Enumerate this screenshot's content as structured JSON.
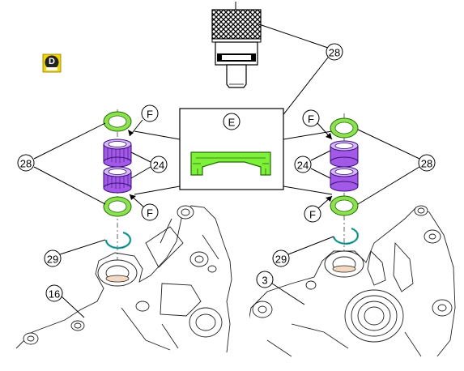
{
  "diagram": {
    "colors": {
      "snap_ring": "#8de050",
      "needle_bearing": "#a259e8",
      "circlip": "#35b6b0",
      "detail_part": "#7ff03a",
      "badge_bg": "#f1d400",
      "line": "#000000"
    },
    "badge": {
      "letter": "D",
      "icon": "service-tool-badge-icon"
    },
    "detail_label": "E",
    "callouts": {
      "tool": "28",
      "left_ring": "28",
      "left_bearing": "24",
      "left_f_top": "F",
      "left_f_bottom": "F",
      "left_circlip": "29",
      "left_housing": "16",
      "right_ring": "28",
      "right_bearing": "24",
      "right_f_top": "F",
      "right_f_bottom": "F",
      "right_circlip": "29",
      "right_housing": "3"
    }
  }
}
